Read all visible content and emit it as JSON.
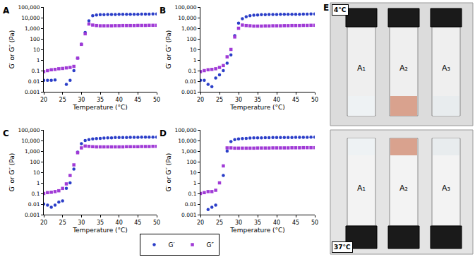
{
  "chart_data": [
    {
      "type": "scatter",
      "title": "A",
      "xlabel": "Temperature (°C)",
      "ylabel": "G′ or G″ (Pa)",
      "x": [
        20,
        21,
        22,
        23,
        24,
        25,
        26,
        27,
        28,
        29,
        30,
        31,
        32,
        33,
        34,
        35,
        36,
        37,
        38,
        39,
        40,
        41,
        42,
        43,
        44,
        45,
        46,
        47,
        48,
        49,
        50
      ],
      "series": [
        {
          "name": "G′",
          "color": "#2b3ec8",
          "marker": "circle",
          "values": [
            0.012,
            0.012,
            0.012,
            0.013,
            null,
            null,
            0.005,
            0.012,
            0.1,
            1.5,
            30,
            400,
            5000,
            15000,
            18000,
            19000,
            19500,
            20000,
            20000,
            20000,
            20500,
            20500,
            21000,
            21000,
            21000,
            21000,
            21500,
            21500,
            21500,
            22000,
            22000
          ]
        },
        {
          "name": "G″",
          "color": "#a03ad6",
          "marker": "square",
          "values": [
            0.08,
            0.1,
            0.12,
            0.13,
            0.15,
            0.16,
            0.18,
            0.2,
            0.25,
            1.5,
            30,
            300,
            2500,
            2000,
            1800,
            1700,
            1700,
            1700,
            1700,
            1750,
            1750,
            1800,
            1800,
            1800,
            1800,
            1850,
            1850,
            1850,
            1900,
            1900,
            1900
          ]
        }
      ],
      "xlim": [
        20,
        50
      ],
      "ylim": [
        0.001,
        100000
      ],
      "xticks": [
        20,
        25,
        30,
        35,
        40,
        45,
        50
      ],
      "yticks": [
        0.001,
        0.01,
        0.1,
        1,
        10,
        100,
        {
          "value": 1000,
          "label": "1,000"
        },
        {
          "value": 10000,
          "label": "10,000"
        },
        {
          "value": 100000,
          "label": "100,000"
        }
      ],
      "log": "y",
      "grid": false,
      "legend": "bottom"
    },
    {
      "type": "scatter",
      "title": "B",
      "xlabel": "Temperature (°C)",
      "ylabel": "G′ or G″ (Pa)",
      "x": [
        20,
        21,
        22,
        23,
        24,
        25,
        26,
        27,
        28,
        29,
        30,
        31,
        32,
        33,
        34,
        35,
        36,
        37,
        38,
        39,
        40,
        41,
        42,
        43,
        44,
        45,
        46,
        47,
        48,
        49,
        50
      ],
      "series": [
        {
          "name": "G′",
          "color": "#2b3ec8",
          "marker": "circle",
          "values": [
            0.012,
            0.012,
            0.005,
            0.003,
            0.02,
            0.04,
            0.1,
            0.5,
            3,
            200,
            3000,
            8000,
            12000,
            15000,
            17000,
            18000,
            19000,
            19500,
            20000,
            20000,
            20000,
            20500,
            20500,
            21000,
            21000,
            21000,
            21000,
            21500,
            21500,
            22000,
            22000
          ]
        },
        {
          "name": "G″",
          "color": "#a03ad6",
          "marker": "square",
          "values": [
            0.08,
            0.1,
            0.12,
            0.13,
            0.15,
            0.2,
            0.3,
            2,
            10,
            150,
            1000,
            2000,
            1800,
            1700,
            1600,
            1600,
            1600,
            1650,
            1650,
            1700,
            1700,
            1700,
            1750,
            1750,
            1800,
            1800,
            1800,
            1850,
            1850,
            1900,
            1900
          ]
        }
      ],
      "xlim": [
        20,
        50
      ],
      "ylim": [
        0.001,
        100000
      ],
      "xticks": [
        20,
        25,
        30,
        35,
        40,
        45,
        50
      ],
      "yticks": [
        0.001,
        0.01,
        0.1,
        1,
        10,
        100,
        {
          "value": 1000,
          "label": "1,000"
        },
        {
          "value": 10000,
          "label": "10,000"
        },
        {
          "value": 100000,
          "label": "100,000"
        }
      ],
      "log": "y",
      "grid": false
    },
    {
      "type": "scatter",
      "title": "C",
      "xlabel": "Temperature (°C)",
      "ylabel": "G′ or G″ (Pa)",
      "x": [
        20,
        21,
        22,
        23,
        24,
        25,
        26,
        27,
        28,
        29,
        30,
        31,
        32,
        33,
        34,
        35,
        36,
        37,
        38,
        39,
        40,
        41,
        42,
        43,
        44,
        45,
        46,
        47,
        48,
        49,
        50
      ],
      "series": [
        {
          "name": "G′",
          "color": "#2b3ec8",
          "marker": "circle",
          "values": [
            0.01,
            0.008,
            0.005,
            0.008,
            0.015,
            0.02,
            0.3,
            1,
            20,
            800,
            5000,
            10000,
            12000,
            14000,
            15000,
            16000,
            17000,
            18000,
            18000,
            19000,
            19000,
            19500,
            19500,
            20000,
            20000,
            20000,
            20500,
            20500,
            21000,
            21000,
            21000
          ]
        },
        {
          "name": "G″",
          "color": "#a03ad6",
          "marker": "square",
          "values": [
            0.1,
            0.12,
            0.13,
            0.15,
            0.18,
            0.3,
            0.8,
            5,
            50,
            700,
            2000,
            3000,
            2800,
            2600,
            2500,
            2500,
            2500,
            2500,
            2500,
            2500,
            2500,
            2500,
            2600,
            2600,
            2600,
            2600,
            2700,
            2700,
            2700,
            2800,
            2800
          ]
        }
      ],
      "xlim": [
        20,
        50
      ],
      "ylim": [
        0.001,
        100000
      ],
      "xticks": [
        20,
        25,
        30,
        35,
        40,
        45,
        50
      ],
      "yticks": [
        0.001,
        0.01,
        0.1,
        1,
        10,
        100,
        {
          "value": 1000,
          "label": "1,000"
        },
        {
          "value": 10000,
          "label": "10,000"
        },
        {
          "value": 100000,
          "label": "100,000"
        }
      ],
      "log": "y",
      "grid": false
    },
    {
      "type": "scatter",
      "title": "D",
      "xlabel": "Temperature (°C)",
      "ylabel": "G′ or G″ (Pa)",
      "x": [
        20,
        21,
        22,
        23,
        24,
        25,
        26,
        27,
        28,
        29,
        30,
        31,
        32,
        33,
        34,
        35,
        36,
        37,
        38,
        39,
        40,
        41,
        42,
        43,
        44,
        45,
        46,
        47,
        48,
        49,
        50
      ],
      "series": [
        {
          "name": "G′",
          "color": "#2b3ec8",
          "marker": "circle",
          "values": [
            null,
            null,
            0.003,
            0.005,
            0.008,
            null,
            5,
            1000,
            8000,
            12000,
            14000,
            15000,
            16000,
            17000,
            17500,
            18000,
            18000,
            18500,
            18500,
            19000,
            19000,
            19000,
            19500,
            19500,
            19500,
            20000,
            20000,
            20000,
            20000,
            20500,
            20500
          ]
        },
        {
          "name": "G″",
          "color": "#a03ad6",
          "marker": "square",
          "values": [
            0.1,
            0.12,
            0.15,
            0.15,
            0.2,
            1,
            40,
            2000,
            2000,
            1900,
            1900,
            1900,
            1900,
            1900,
            1900,
            1950,
            1950,
            1950,
            1950,
            2000,
            2000,
            2000,
            2000,
            2000,
            2050,
            2050,
            2050,
            2100,
            2100,
            2100,
            2100
          ]
        }
      ],
      "xlim": [
        20,
        50
      ],
      "ylim": [
        0.001,
        100000
      ],
      "xticks": [
        20,
        25,
        30,
        35,
        40,
        45,
        50
      ],
      "yticks": [
        0.001,
        0.01,
        0.1,
        1,
        10,
        100,
        {
          "value": 1000,
          "label": "1,000"
        },
        {
          "value": 10000,
          "label": "10,000"
        },
        {
          "value": 100000,
          "label": "100,000"
        }
      ],
      "log": "y",
      "grid": false
    }
  ],
  "photo_panel": {
    "label": "E",
    "top_label": "4°C",
    "bottom_label": "37°C",
    "vials": [
      "A₁",
      "A₂",
      "A₃"
    ]
  }
}
